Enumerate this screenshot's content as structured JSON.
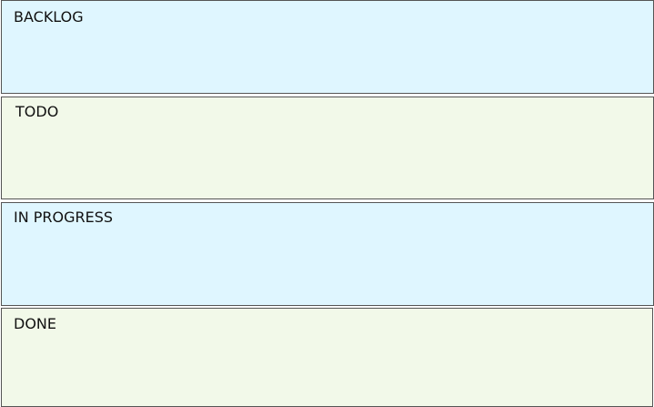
{
  "board": {
    "lanes": [
      {
        "label": "BACKLOG",
        "color": "#dff6ff"
      },
      {
        "label": "TODO",
        "color": "#f2f9e9"
      },
      {
        "label": "IN PROGRESS",
        "color": "#dff6ff"
      },
      {
        "label": "DONE",
        "color": "#f2f9e9"
      }
    ]
  }
}
